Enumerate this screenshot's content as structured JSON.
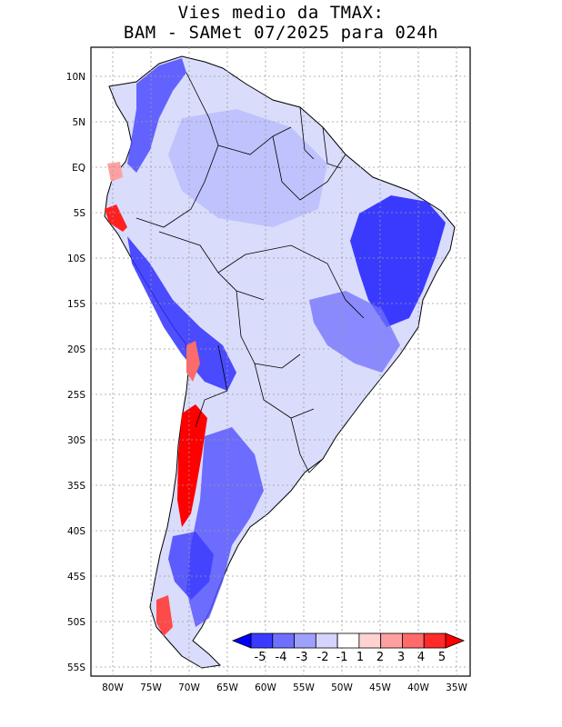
{
  "title_line1": "Vies medio da TMAX:",
  "title_line2": "BAM - SAMet 07/2025  para 024h",
  "lat_labels": [
    "10N",
    "5N",
    "EQ",
    "5S",
    "10S",
    "15S",
    "20S",
    "25S",
    "30S",
    "35S",
    "40S",
    "45S",
    "50S",
    "55S"
  ],
  "lon_labels": [
    "80W",
    "75W",
    "70W",
    "65W",
    "60W",
    "55W",
    "50W",
    "45W",
    "40W",
    "35W"
  ],
  "colorbar": {
    "labels": [
      "-5",
      "-4",
      "-3",
      "-2",
      "-1",
      "1",
      "2",
      "3",
      "4",
      "5"
    ],
    "colors": [
      "#0000ff",
      "#3b3bff",
      "#6f6fff",
      "#9f9fff",
      "#d4d4ff",
      "#ffffff",
      "#ffd2d2",
      "#ffa0a0",
      "#ff6a6a",
      "#ff2a2a",
      "#ff0000"
    ]
  }
}
